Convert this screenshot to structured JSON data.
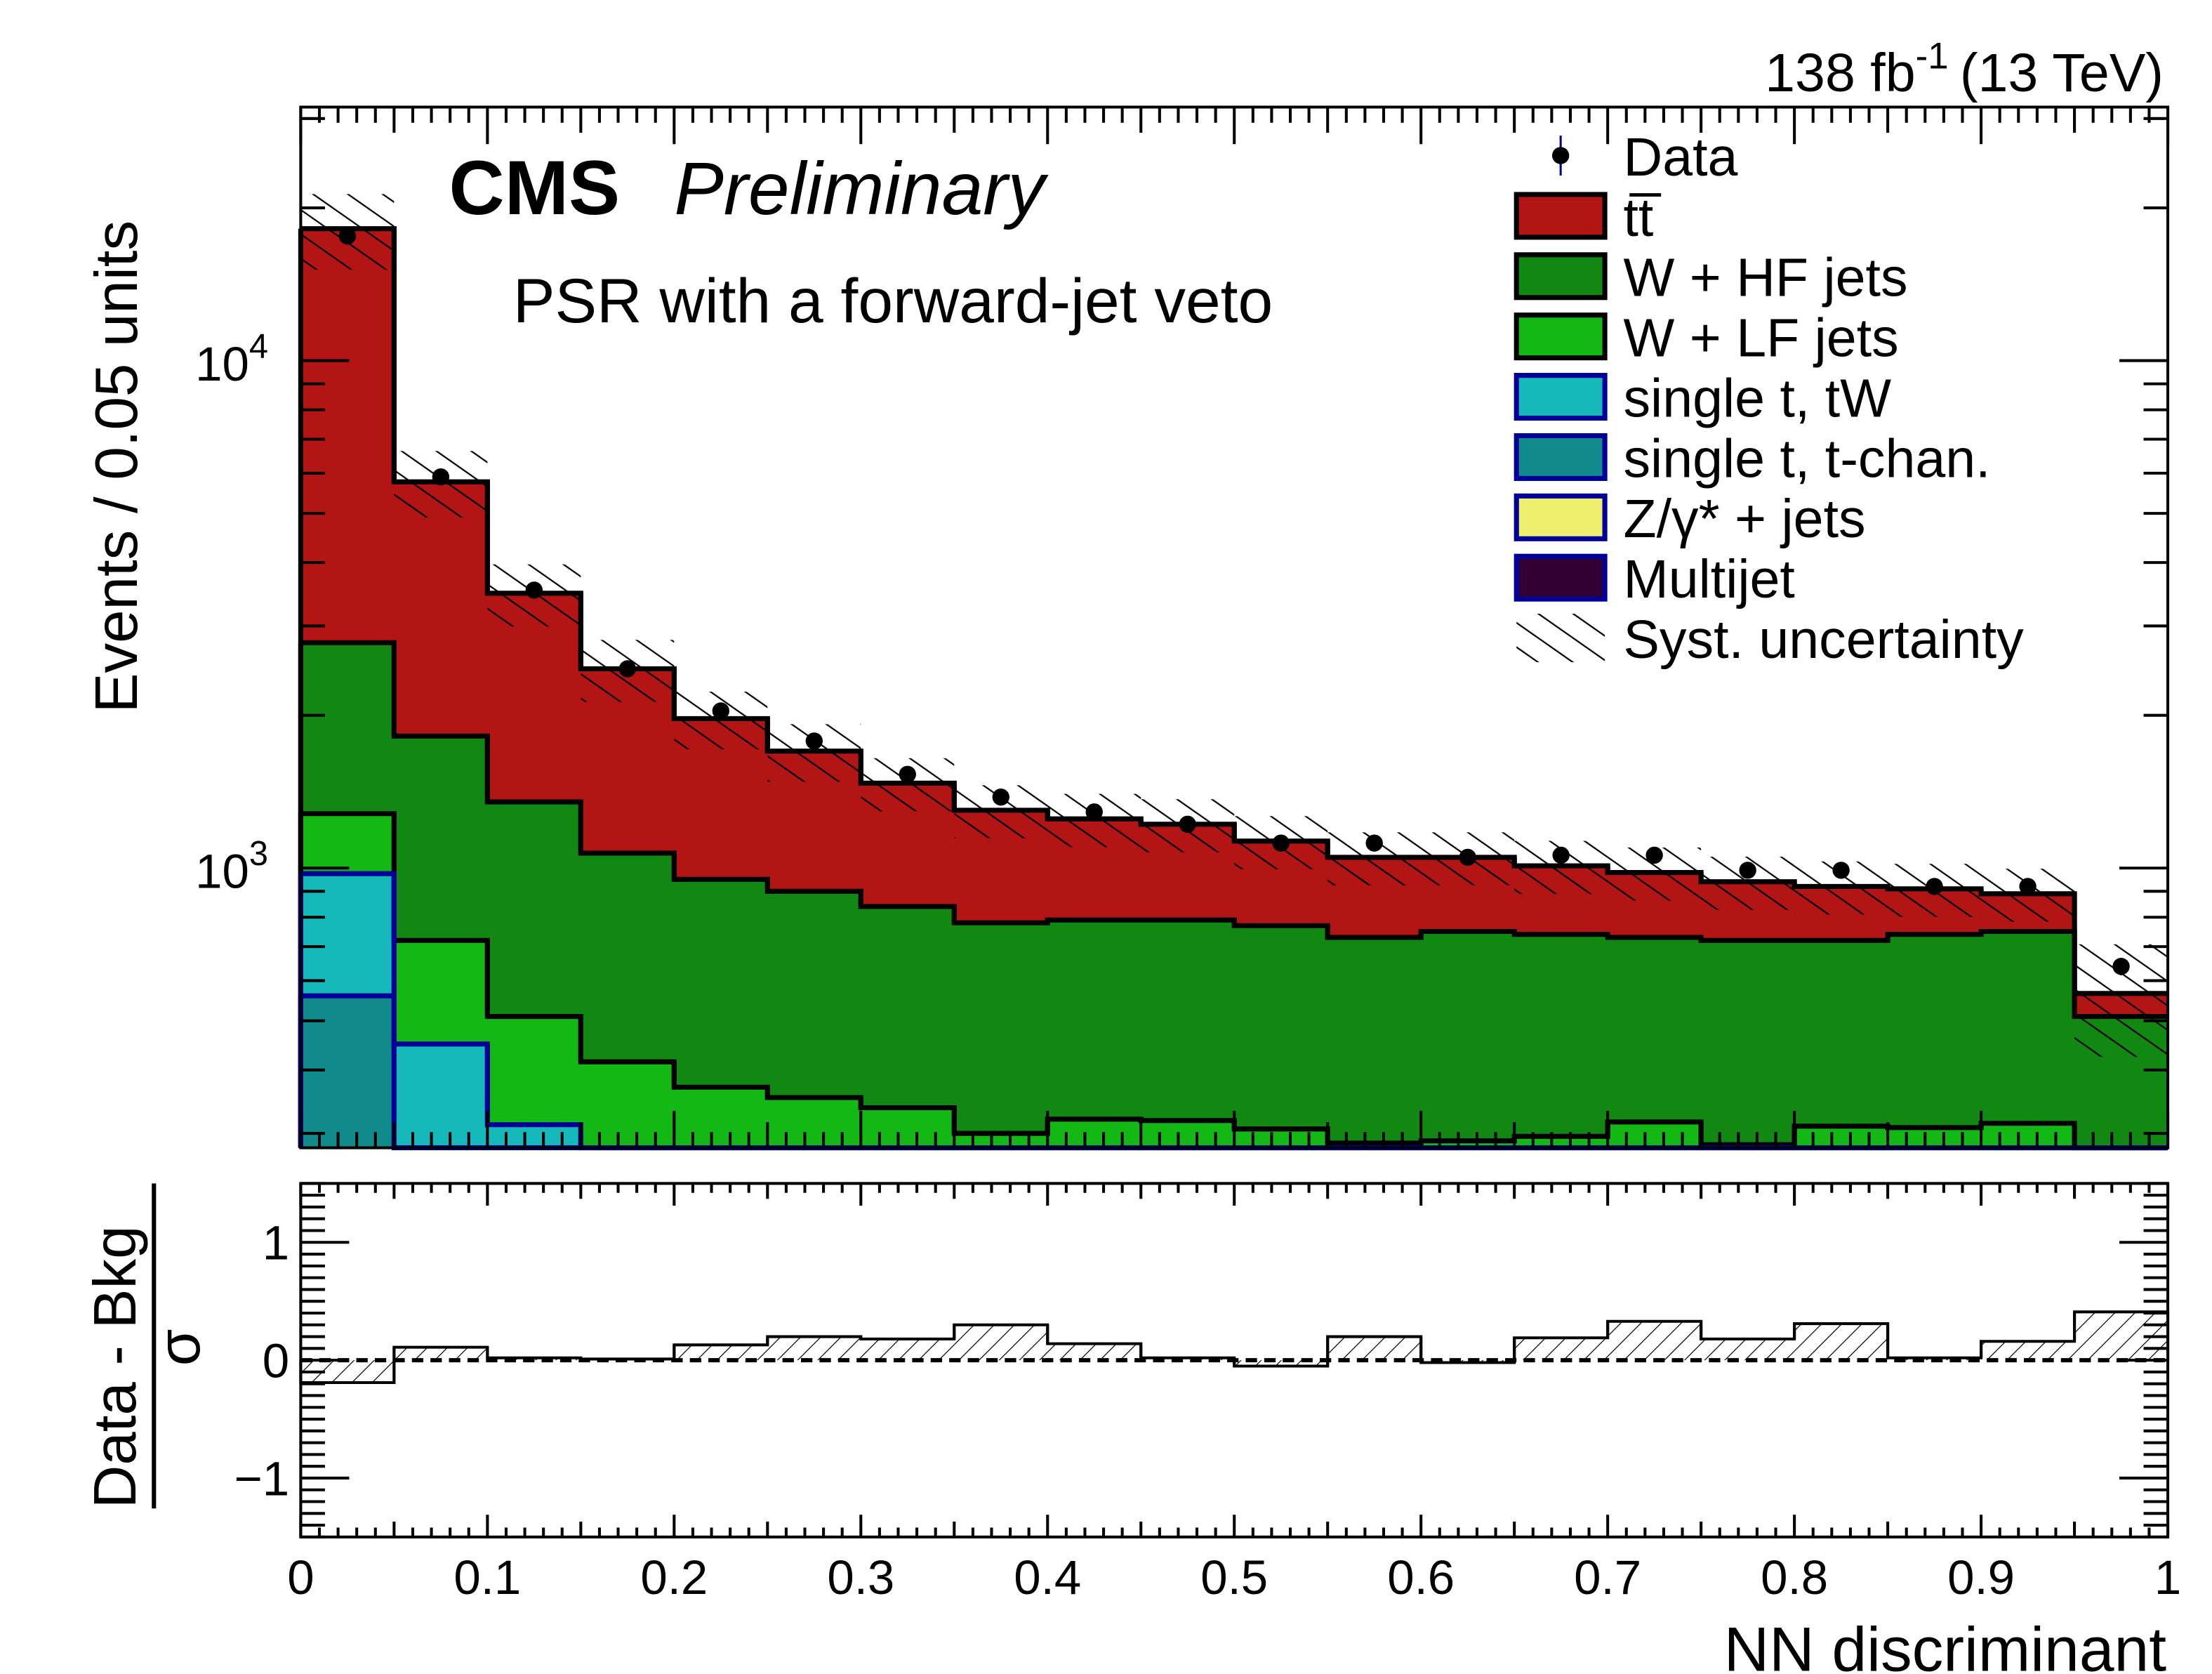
{
  "chart_data": {
    "type": "bar",
    "subtype": "stacked-histogram-log-with-pull-panel",
    "header": {
      "cms": "CMS",
      "preliminary": "Preliminary",
      "lumi": "138 fb",
      "lumi_exp": "-1",
      "energy": "(13 TeV)"
    },
    "region_label": "PSR with a forward-jet veto",
    "xlabel": "NN discriminant",
    "ylabel": "Events / 0.05 units",
    "bin_edges": [
      0,
      0.05,
      0.1,
      0.15,
      0.2,
      0.25,
      0.3,
      0.35,
      0.4,
      0.45,
      0.5,
      0.55,
      0.6,
      0.65,
      0.7,
      0.75,
      0.8,
      0.85,
      0.9,
      0.95,
      1.0
    ],
    "xlim": [
      0,
      1
    ],
    "ylim": [
      281,
      31600
    ],
    "yscale": "log",
    "x_tick_labels": [
      "0",
      "0.1",
      "0.2",
      "0.3",
      "0.4",
      "0.5",
      "0.6",
      "0.7",
      "0.8",
      "0.9",
      "1"
    ],
    "y_tick_labels": [
      {
        "base": "10",
        "exp": "3",
        "value": 1000
      },
      {
        "base": "10",
        "exp": "4",
        "value": 10000
      }
    ],
    "stack_note": "values are cumulative stack heights (top edge of each process), bottom to top",
    "series": [
      {
        "name": "single t, t-chan.",
        "color": "#108a8a",
        "edge": "#000099",
        "cumulative": [
          560,
          281,
          281,
          281,
          281,
          281,
          281,
          281,
          281,
          281,
          281,
          281,
          281,
          281,
          281,
          281,
          281,
          281,
          281,
          281
        ]
      },
      {
        "name": "single t, tW",
        "color": "#16b9b9",
        "edge": "#000099",
        "cumulative": [
          975,
          450,
          312,
          281,
          281,
          281,
          281,
          281,
          281,
          281,
          281,
          281,
          281,
          281,
          281,
          281,
          281,
          281,
          281,
          281
        ]
      },
      {
        "name": "W + LF jets",
        "color": "#14b814",
        "edge": "#000000",
        "cumulative": [
          1280,
          720,
          510,
          415,
          370,
          353,
          337,
          300,
          320,
          318,
          306,
          287,
          290,
          296,
          316,
          285,
          310,
          308,
          314,
          281
        ]
      },
      {
        "name": "W + HF jets",
        "color": "#108812",
        "edge": "#000000",
        "cumulative": [
          2780,
          1820,
          1350,
          1070,
          950,
          900,
          840,
          780,
          790,
          790,
          770,
          730,
          750,
          740,
          730,
          720,
          720,
          740,
          750,
          510
        ]
      },
      {
        "name": "tt̅",
        "color": "#b31414",
        "edge": "#000000",
        "cumulative": [
          18200,
          5770,
          3480,
          2470,
          1970,
          1700,
          1470,
          1300,
          1250,
          1220,
          1130,
          1050,
          1050,
          1010,
          980,
          940,
          920,
          910,
          890,
          566
        ]
      }
    ],
    "legend": [
      {
        "label": "Data",
        "kind": "marker"
      },
      {
        "label": "tt̅",
        "color": "#b31414",
        "edge": "#000000"
      },
      {
        "label": "W + HF jets",
        "color": "#108812",
        "edge": "#000000"
      },
      {
        "label": "W + LF jets",
        "color": "#14b814",
        "edge": "#000000"
      },
      {
        "label": "single t, tW",
        "color": "#16b9b9",
        "edge": "#000099"
      },
      {
        "label": "single t, t-chan.",
        "color": "#108a8a",
        "edge": "#000099"
      },
      {
        "label": "Z/γ* + jets",
        "color": "#f0f070",
        "edge": "#000099"
      },
      {
        "label": "Multijet",
        "color": "#320032",
        "edge": "#000099"
      },
      {
        "label": "Syst. uncertainty",
        "kind": "hatch"
      }
    ],
    "legend_position": "top-right",
    "data": [
      17600,
      5900,
      3530,
      2470,
      2040,
      1780,
      1530,
      1380,
      1290,
      1220,
      1120,
      1120,
      1050,
      1060,
      1060,
      990,
      990,
      920,
      920,
      640
    ],
    "syst_rel_uncertainty": [
      0.17,
      0.15,
      0.14,
      0.14,
      0.13,
      0.13,
      0.12,
      0.12,
      0.12,
      0.12,
      0.12,
      0.12,
      0.12,
      0.12,
      0.12,
      0.12,
      0.12,
      0.12,
      0.12,
      0.25
    ],
    "ratio_panel": {
      "ylabel_num": "Data - Bkg",
      "ylabel_den": "σ",
      "ylim": [
        -1.5,
        1.5
      ],
      "y_tick_labels": [
        "−1",
        "0",
        "1"
      ],
      "values": [
        -0.19,
        0.11,
        0.02,
        0.01,
        0.13,
        0.2,
        0.18,
        0.3,
        0.14,
        0.02,
        -0.05,
        0.2,
        -0.02,
        0.19,
        0.33,
        0.18,
        0.31,
        0.02,
        0.16,
        0.41
      ]
    }
  }
}
